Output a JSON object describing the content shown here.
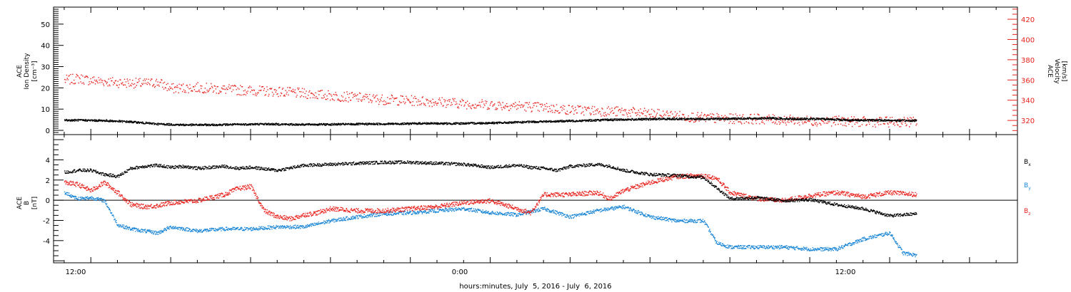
{
  "colors": {
    "black": "#000000",
    "red": "#e8211c",
    "blue": "#1a86d6",
    "bg": "#ffffff"
  },
  "xaxis": {
    "tick_labels": [
      "12:00",
      "0:00",
      "12:00"
    ],
    "label": "hours:minutes, July  5, 2016 - July  6, 2016"
  },
  "chart_data": [
    {
      "type": "scatter",
      "panel": "top",
      "left_axis": {
        "label_lines": [
          "ACE",
          "Ion Density"
        ],
        "units": "[cm⁻³]",
        "ylim": [
          -2,
          58
        ],
        "ticks": [
          0,
          10,
          20,
          30,
          40,
          50
        ]
      },
      "right_axis": {
        "label_lines": [
          "ACE",
          "Velocity"
        ],
        "units": "[km/s]",
        "ylim": [
          306,
          432
        ],
        "ticks": [
          320,
          340,
          360,
          380,
          400,
          420
        ]
      },
      "x_hours_range": [
        10.6,
        46.8
      ],
      "series": [
        {
          "name": "Ion Density",
          "axis": "left",
          "color": "black",
          "x_hours": [
            11.0,
            11.5,
            12.5,
            13.5,
            14.5,
            15.5,
            16.5,
            17.5,
            18.5,
            19.5,
            20.5,
            21.5,
            22.5,
            23.5,
            24.5,
            25.5,
            26.5,
            27.5,
            28.5,
            29.5,
            30.5,
            31.5,
            32.5,
            33.5,
            34.5,
            35.5,
            36.5,
            37.5,
            38.5,
            39.5,
            40.5,
            41.5,
            42.5,
            43.0
          ],
          "values": [
            5.0,
            5.0,
            4.8,
            4.2,
            3.2,
            2.8,
            2.8,
            3.0,
            3.2,
            3.0,
            3.0,
            3.1,
            3.2,
            3.3,
            3.5,
            3.4,
            3.6,
            3.8,
            4.2,
            4.5,
            4.8,
            5.2,
            5.4,
            5.6,
            5.6,
            5.6,
            5.8,
            5.9,
            5.6,
            5.6,
            5.0,
            5.0,
            4.8,
            4.8
          ]
        },
        {
          "name": "Velocity",
          "axis": "right",
          "color": "red",
          "x_hours": [
            11.0,
            11.5,
            12.0,
            13.0,
            14.0,
            14.5,
            15.0,
            16.0,
            17.0,
            18.0,
            19.0,
            20.0,
            21.0,
            22.0,
            23.0,
            24.0,
            25.0,
            26.0,
            27.0,
            28.0,
            29.0,
            30.0,
            31.0,
            32.0,
            33.0,
            34.0,
            35.0,
            36.0,
            37.0,
            38.0,
            39.0,
            40.0,
            41.0,
            42.0,
            43.0
          ],
          "values": [
            360,
            362,
            360,
            358,
            357,
            358,
            352,
            353,
            351,
            350,
            349,
            347,
            345,
            343,
            341,
            340,
            339,
            337,
            336,
            335,
            333,
            331,
            330,
            329,
            327,
            325,
            323,
            322,
            322,
            321,
            320,
            320,
            319,
            319,
            319
          ]
        }
      ]
    },
    {
      "type": "scatter",
      "panel": "bottom",
      "left_axis": {
        "label_lines": [
          "ACE",
          "B"
        ],
        "units": "[nT]",
        "ylim": [
          -6.2,
          6.5
        ],
        "ticks": [
          -4,
          -2,
          0,
          2,
          4
        ]
      },
      "x_hours_range": [
        10.6,
        46.8
      ],
      "zero_line": true,
      "series": [
        {
          "name": "Bx",
          "label": "B",
          "subscript": "x",
          "color": "black",
          "x_hours": [
            11.0,
            11.5,
            12.0,
            12.5,
            13.0,
            13.5,
            14.0,
            14.5,
            15.0,
            15.5,
            16.0,
            16.5,
            17.0,
            17.5,
            18.0,
            19.0,
            20.0,
            21.0,
            22.0,
            23.0,
            24.0,
            25.0,
            26.0,
            27.0,
            28.0,
            28.5,
            29.0,
            29.5,
            30.0,
            31.0,
            31.5,
            32.0,
            32.5,
            33.0,
            34.0,
            35.0,
            36.0,
            37.0,
            38.0,
            39.0,
            40.0,
            41.0,
            42.0,
            43.0
          ],
          "values": [
            2.8,
            3.0,
            3.0,
            2.6,
            2.4,
            3.2,
            3.4,
            3.5,
            3.3,
            3.4,
            3.2,
            3.3,
            3.4,
            3.2,
            3.3,
            3.0,
            3.5,
            3.6,
            3.7,
            3.8,
            3.8,
            3.7,
            3.6,
            3.3,
            3.5,
            3.3,
            3.2,
            3.0,
            3.4,
            3.6,
            3.4,
            3.0,
            2.8,
            2.6,
            2.5,
            2.3,
            0.2,
            0.3,
            0.0,
            0.1,
            -0.4,
            -0.8,
            -1.5,
            -1.3
          ]
        },
        {
          "name": "By",
          "label": "B",
          "subscript": "y",
          "color": "blue",
          "x_hours": [
            11.0,
            11.5,
            12.0,
            12.5,
            13.0,
            13.5,
            14.0,
            14.5,
            15.0,
            16.0,
            17.0,
            18.0,
            19.0,
            20.0,
            21.0,
            22.0,
            23.0,
            24.0,
            25.0,
            26.0,
            27.0,
            28.0,
            29.0,
            30.0,
            31.0,
            32.0,
            33.0,
            34.0,
            35.0,
            35.5,
            36.0,
            37.0,
            38.0,
            39.0,
            40.0,
            41.0,
            42.0,
            42.5,
            43.0
          ],
          "values": [
            0.8,
            0.2,
            0.3,
            0.0,
            -2.4,
            -2.8,
            -3.0,
            -3.2,
            -2.6,
            -3.0,
            -2.8,
            -2.8,
            -2.6,
            -2.6,
            -2.0,
            -1.6,
            -1.3,
            -1.2,
            -1.0,
            -0.8,
            -1.2,
            -1.4,
            -0.8,
            -1.6,
            -1.0,
            -0.6,
            -1.6,
            -2.0,
            -2.0,
            -4.2,
            -4.6,
            -4.6,
            -4.6,
            -4.8,
            -4.8,
            -3.8,
            -3.2,
            -5.2,
            -5.4
          ]
        },
        {
          "name": "Bz",
          "label": "B",
          "subscript": "z",
          "color": "red",
          "x_hours": [
            11.0,
            11.5,
            12.0,
            12.5,
            13.0,
            13.5,
            14.0,
            14.5,
            15.0,
            16.0,
            17.0,
            17.5,
            18.0,
            18.5,
            19.0,
            19.5,
            20.0,
            20.5,
            21.0,
            22.0,
            23.0,
            24.0,
            25.0,
            26.0,
            27.0,
            27.5,
            28.0,
            28.5,
            29.0,
            30.0,
            31.0,
            31.5,
            32.0,
            33.0,
            34.0,
            35.0,
            35.5,
            36.0,
            37.0,
            38.0,
            39.0,
            40.0,
            41.0,
            42.0,
            43.0
          ],
          "values": [
            1.8,
            1.6,
            1.0,
            1.8,
            0.8,
            -0.4,
            -0.6,
            -0.5,
            -0.2,
            0.0,
            0.6,
            1.2,
            1.4,
            -1.0,
            -1.6,
            -1.8,
            -1.4,
            -1.2,
            -0.8,
            -1.0,
            -1.0,
            -0.8,
            -0.6,
            -0.2,
            0.0,
            -0.4,
            -0.8,
            -1.2,
            0.6,
            0.6,
            0.8,
            0.2,
            1.0,
            1.8,
            2.4,
            2.5,
            2.2,
            0.8,
            0.2,
            0.0,
            0.5,
            0.8,
            0.4,
            0.8,
            0.6
          ]
        }
      ]
    }
  ]
}
